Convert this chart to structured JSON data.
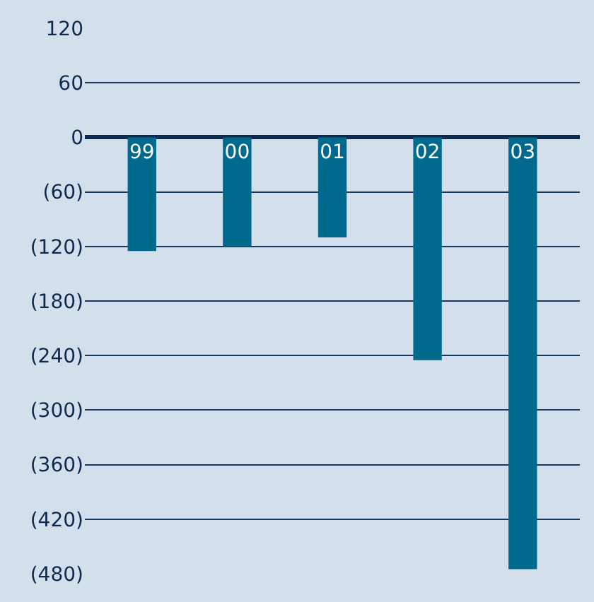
{
  "chart_data": {
    "type": "bar",
    "categories": [
      "99",
      "00",
      "01",
      "02",
      "03"
    ],
    "values": [
      -125,
      -120,
      -110,
      -245,
      -475
    ],
    "color": "#006a8e",
    "ylim": [
      -480,
      120
    ],
    "yticks": [
      120,
      60,
      0,
      {
        "value": -60,
        "label": "(60)"
      },
      {
        "value": -120,
        "label": "(120)"
      },
      {
        "value": -180,
        "label": "(180)"
      },
      {
        "value": -240,
        "label": "(240)"
      },
      {
        "value": -300,
        "label": "(300)"
      },
      {
        "value": -360,
        "label": "(360)"
      },
      {
        "value": -420,
        "label": "(420)"
      },
      {
        "value": -480,
        "label": "(480)"
      }
    ],
    "grid": "y",
    "tick_labels": "y"
  }
}
